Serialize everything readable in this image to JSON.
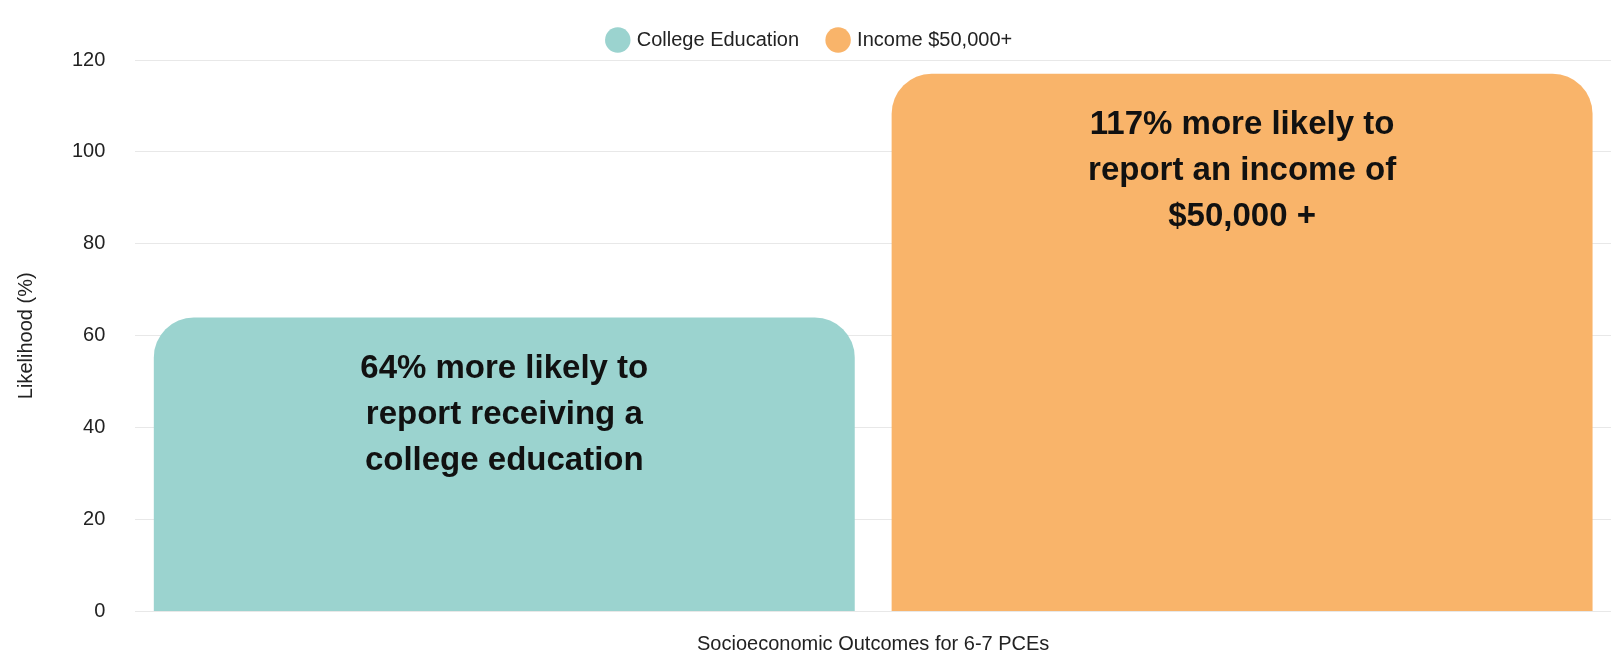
{
  "chart_data": {
    "type": "bar",
    "xlabel": "Socioeconomic Outcomes for 6-7 PCEs",
    "ylabel": "Likelihood (%)",
    "categories": [
      null
    ],
    "series": [
      {
        "name": "College Education",
        "color": "#9bd3cf",
        "values": [
          64
        ],
        "value_labels": [
          "64% more likely to report receiving a college education"
        ]
      },
      {
        "name": "Income $50,000+",
        "color": "#f9b46a",
        "values": [
          117
        ],
        "value_labels": [
          "117% more likely to report an income of $50,000 +"
        ]
      }
    ],
    "ylim": [
      0,
      120
    ],
    "yticks": [
      0,
      20,
      40,
      60,
      80,
      100,
      120
    ],
    "grid": "y",
    "legend": "top"
  }
}
